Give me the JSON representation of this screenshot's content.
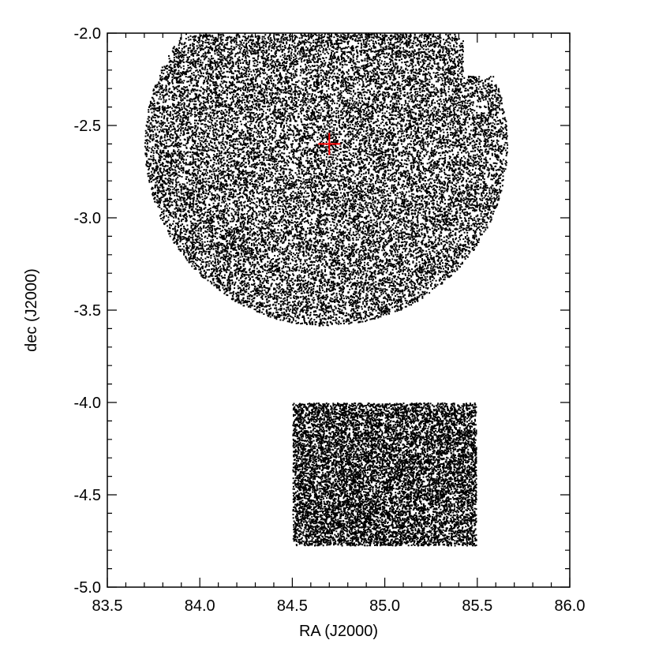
{
  "chart_data": {
    "type": "scatter",
    "title": "",
    "xlabel": "RA (J2000)",
    "ylabel": "dec (J2000)",
    "xlim": [
      83.5,
      86.0
    ],
    "ylim": [
      -5.0,
      -2.0
    ],
    "x_ticks": [
      "83.5",
      "84.0",
      "84.5",
      "85.0",
      "85.5",
      "86.0"
    ],
    "y_ticks": [
      "-2.0",
      "-2.5",
      "-3.0",
      "-3.5",
      "-4.0",
      "-4.5",
      "-5.0"
    ],
    "grid": false,
    "series": [
      {
        "region": "circle",
        "center_ra": 84.68,
        "center_dec": -2.6,
        "radius_deg": 0.98,
        "dec_upper_cut": -2.0,
        "ra_right_cut": 85.66,
        "notch": {
          "ra_min": 85.42,
          "dec_max": -2.23
        },
        "point_color": "#000000"
      },
      {
        "region": "rectangle",
        "ra_range": [
          84.5,
          85.5
        ],
        "dec_range": [
          -4.78,
          -4.0
        ],
        "point_color": "#000000"
      }
    ],
    "marker": {
      "shape": "cross",
      "ra": 84.7,
      "dec": -2.6,
      "color": "#ff0000"
    }
  }
}
